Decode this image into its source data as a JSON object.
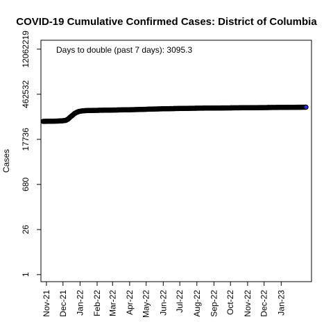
{
  "chart_data": {
    "type": "scatter",
    "title": "COVID-19 Cumulative Confirmed Cases: District of Columbia",
    "xlabel": "",
    "ylabel": "Cases",
    "y_scale": "log",
    "y_ticks": [
      1,
      26,
      680,
      17736,
      462532,
      12062219
    ],
    "x_ticks": [
      "Nov-21",
      "Dec-21",
      "Jan-22",
      "Feb-22",
      "Mar-22",
      "Apr-22",
      "May-22",
      "Jun-22",
      "Jul-22",
      "Aug-22",
      "Sep-22",
      "Oct-22",
      "Nov-22",
      "Dec-22",
      "Jan-23"
    ],
    "xlim": [
      "2021-10-22",
      "2023-02-25"
    ],
    "ylim": [
      0.6,
      23000000
    ],
    "annotation": "Days to double (past 7 days): 3095.3",
    "grid": false,
    "point_color": "#000000",
    "last_point_color": "#2b2bd0",
    "series": [
      {
        "x": [
          "2021-10-26",
          "2021-11-01",
          "2021-11-08",
          "2021-11-15",
          "2021-11-22",
          "2021-11-29",
          "2021-12-06",
          "2021-12-10",
          "2021-12-14",
          "2021-12-18",
          "2021-12-22",
          "2021-12-26",
          "2021-12-30",
          "2022-01-04",
          "2022-01-09",
          "2022-01-15",
          "2022-01-22",
          "2022-02-01",
          "2022-02-15",
          "2022-03-01",
          "2022-03-15",
          "2022-04-01",
          "2022-04-15",
          "2022-05-01",
          "2022-05-15",
          "2022-06-01",
          "2022-06-15",
          "2022-07-01",
          "2022-07-15",
          "2022-08-01",
          "2022-08-15",
          "2022-09-01",
          "2022-09-15",
          "2022-10-01",
          "2022-10-15",
          "2022-11-01",
          "2022-11-15",
          "2022-12-01",
          "2022-12-15",
          "2023-01-01",
          "2023-01-15",
          "2023-02-01",
          "2023-02-15"
        ],
        "y": [
          65000,
          65300,
          65600,
          66000,
          66500,
          67500,
          70000,
          76000,
          88000,
          100000,
          115000,
          125000,
          133000,
          138000,
          141000,
          142500,
          143500,
          144500,
          146000,
          147500,
          149000,
          151000,
          153000,
          156000,
          159000,
          161500,
          163500,
          165500,
          167000,
          168500,
          169500,
          170500,
          171500,
          172500,
          173500,
          174500,
          175500,
          176500,
          177500,
          178500,
          179500,
          180500,
          181500
        ]
      }
    ]
  }
}
